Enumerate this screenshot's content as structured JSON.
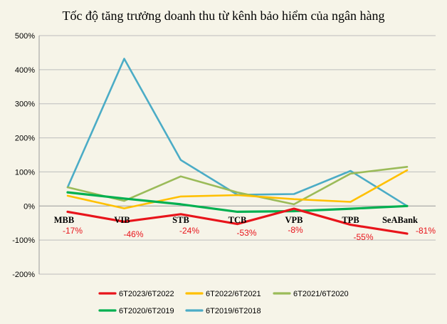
{
  "chart_data": {
    "type": "line",
    "title": "Tốc độ tăng trưởng doanh thu từ kênh bảo hiểm của ngân hàng",
    "categories": [
      "MBB",
      "VIB",
      "STB",
      "TCB",
      "VPB",
      "TPB",
      "SeABank"
    ],
    "y_ticks": [
      "500%",
      "400%",
      "300%",
      "200%",
      "100%",
      "0%",
      "-100%",
      "-200%"
    ],
    "ylim": [
      -200,
      500
    ],
    "grid": true,
    "legend_position": "bottom",
    "series": [
      {
        "name": "6T2023/6T2022",
        "color": "#e8141b",
        "values": [
          -17,
          -46,
          -24,
          -53,
          -8,
          -55,
          -81
        ],
        "data_labels": [
          "-17%",
          "-46%",
          "-24%",
          "-53%",
          "-8%",
          "-55%",
          "-81%"
        ]
      },
      {
        "name": "6T2022/6T2021",
        "color": "#ffc000",
        "values": [
          30,
          -7,
          28,
          32,
          20,
          12,
          105
        ]
      },
      {
        "name": "6T2021/6T2020",
        "color": "#9bbb59",
        "values": [
          55,
          15,
          87,
          40,
          5,
          95,
          115
        ]
      },
      {
        "name": "6T2020/6T2019",
        "color": "#00b050",
        "values": [
          40,
          22,
          5,
          -17,
          -15,
          -8,
          0
        ]
      },
      {
        "name": "6T2019/6T2018",
        "color": "#4bacc6",
        "values": [
          55,
          432,
          135,
          33,
          35,
          103,
          0
        ]
      }
    ]
  }
}
